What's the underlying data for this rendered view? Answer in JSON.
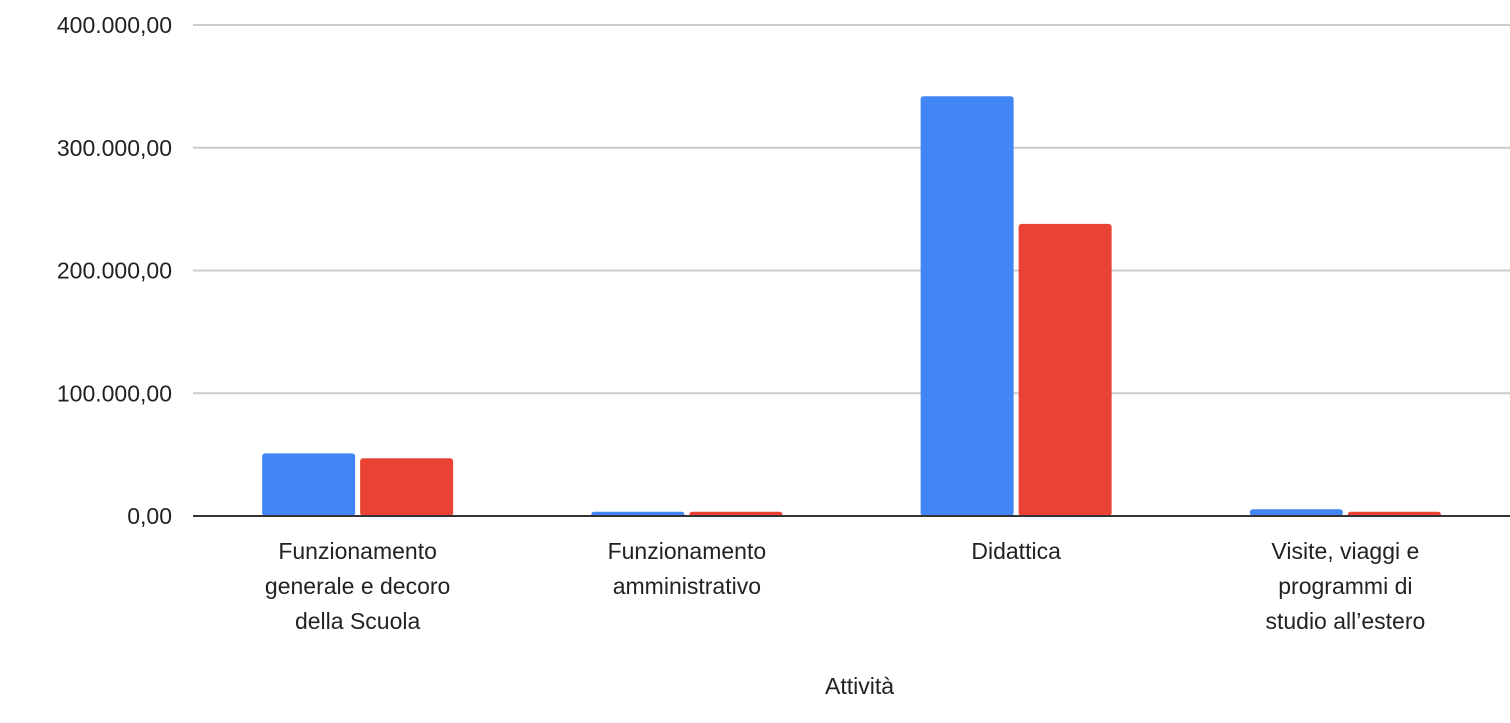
{
  "chart_data": {
    "type": "bar",
    "xlabel": "Attività",
    "ylabel": "",
    "ylim": [
      0,
      400000
    ],
    "yticks": [
      0,
      100000,
      200000,
      300000,
      400000
    ],
    "ytick_labels": [
      "0,00",
      "100.000,00",
      "200.000,00",
      "300.000,00",
      "400.000,00"
    ],
    "grid": true,
    "legend": "none",
    "categories": [
      [
        "Funzionamento",
        "generale e decoro",
        "della Scuola"
      ],
      [
        "Funzionamento",
        "amministrativo"
      ],
      [
        "Didattica"
      ],
      [
        "Visite, viaggi e",
        "programmi di",
        "studio all’estero"
      ]
    ],
    "series": [
      {
        "color": "#4285f4",
        "values": [
          51000,
          3500,
          342000,
          5500
        ]
      },
      {
        "color": "#ea4335",
        "values": [
          47000,
          3500,
          238000,
          3500
        ]
      }
    ]
  }
}
